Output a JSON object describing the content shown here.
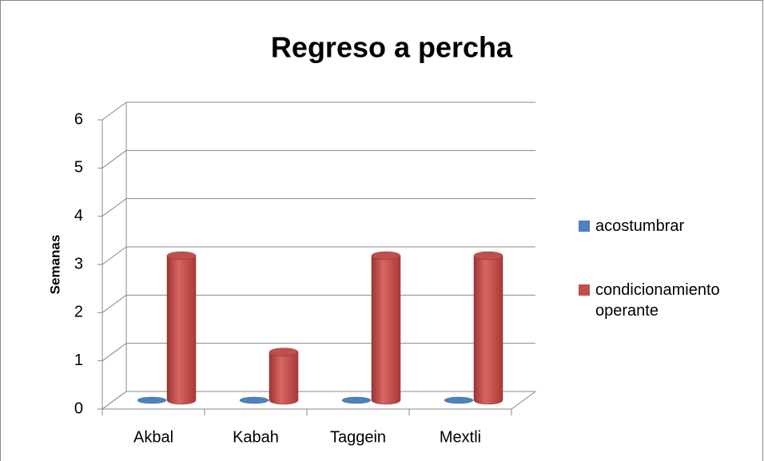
{
  "chart_data": {
    "type": "bar3d",
    "title": "Regreso a percha",
    "y_label": "Semanas",
    "categories": [
      "Akbal",
      "Kabah",
      "Taggein",
      "Mextli"
    ],
    "series": [
      {
        "name": "acostumbrar",
        "color": "#4f81bd",
        "values": [
          0,
          0,
          0,
          0
        ]
      },
      {
        "name": "condicionamiento operante",
        "color": "#c0504d",
        "values": [
          3,
          1,
          3,
          3
        ]
      }
    ],
    "ylim": [
      0,
      6
    ],
    "yticks": [
      0,
      1,
      2,
      3,
      4,
      5,
      6
    ],
    "grid": true,
    "legend": "right"
  }
}
